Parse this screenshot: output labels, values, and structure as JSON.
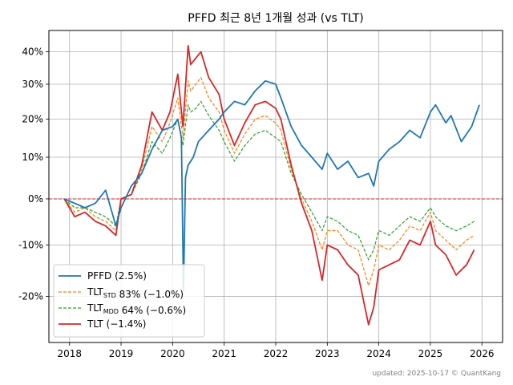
{
  "footer": {
    "text": "updated: 2025-10-17 © QuantKang"
  },
  "chart_data": {
    "type": "line",
    "title": "PFFD 최근 8년 1개월 성과 (vs TLT)",
    "xlabel": "",
    "ylabel": "",
    "grid": true,
    "legend_position": "bottom-left",
    "xlim": [
      2017.6,
      2026.4
    ],
    "ylim": [
      -0.28,
      0.47
    ],
    "y_scale": "log-growth",
    "x_ticks": [
      {
        "value": 2018,
        "label": "2018"
      },
      {
        "value": 2019,
        "label": "2019"
      },
      {
        "value": 2020,
        "label": "2020"
      },
      {
        "value": 2021,
        "label": "2021"
      },
      {
        "value": 2022,
        "label": "2022"
      },
      {
        "value": 2023,
        "label": "2023"
      },
      {
        "value": 2024,
        "label": "2024"
      },
      {
        "value": 2025,
        "label": "2025"
      },
      {
        "value": 2026,
        "label": "2026"
      }
    ],
    "y_ticks": [
      {
        "value": -0.2,
        "label": "-20%"
      },
      {
        "value": -0.1,
        "label": "-10%"
      },
      {
        "value": 0.0,
        "label": "0%"
      },
      {
        "value": 0.1,
        "label": "10%"
      },
      {
        "value": 0.2,
        "label": "20%"
      },
      {
        "value": 0.3,
        "label": "30%"
      },
      {
        "value": 0.4,
        "label": "40%"
      }
    ],
    "zero_line": {
      "value": 0.0,
      "color": "#d62728",
      "style": "dashed"
    },
    "series": [
      {
        "name": "PFFD (2.5%)",
        "color": "#1f77b4",
        "style": "solid",
        "x": [
          2017.9,
          2018.1,
          2018.3,
          2018.5,
          2018.7,
          2018.9,
          2019.0,
          2019.2,
          2019.4,
          2019.6,
          2019.8,
          2020.0,
          2020.1,
          2020.17,
          2020.21,
          2020.25,
          2020.3,
          2020.4,
          2020.5,
          2020.7,
          2020.9,
          2021.0,
          2021.2,
          2021.4,
          2021.6,
          2021.8,
          2022.0,
          2022.1,
          2022.3,
          2022.5,
          2022.7,
          2022.9,
          2023.0,
          2023.2,
          2023.4,
          2023.6,
          2023.8,
          2023.9,
          2024.0,
          2024.2,
          2024.4,
          2024.6,
          2024.8,
          2025.0,
          2025.1,
          2025.3,
          2025.4,
          2025.6,
          2025.8,
          2025.95
        ],
        "y": [
          0.0,
          -0.01,
          -0.02,
          -0.01,
          0.02,
          -0.06,
          -0.02,
          0.03,
          0.06,
          0.12,
          0.17,
          0.18,
          0.2,
          0.15,
          -0.19,
          0.05,
          0.08,
          0.1,
          0.14,
          0.17,
          0.2,
          0.22,
          0.25,
          0.24,
          0.28,
          0.31,
          0.3,
          0.26,
          0.18,
          0.13,
          0.1,
          0.07,
          0.11,
          0.07,
          0.09,
          0.05,
          0.06,
          0.03,
          0.09,
          0.12,
          0.14,
          0.17,
          0.15,
          0.22,
          0.24,
          0.19,
          0.21,
          0.14,
          0.18,
          0.24
        ]
      },
      {
        "name": "TLT<sub>STD</sub> 83% (−1.0%)",
        "color": "#ff7f0e",
        "style": "dashed",
        "x": [
          2017.9,
          2018.1,
          2018.3,
          2018.5,
          2018.7,
          2018.9,
          2019.0,
          2019.2,
          2019.4,
          2019.6,
          2019.8,
          2019.95,
          2020.1,
          2020.2,
          2020.3,
          2020.35,
          2020.45,
          2020.55,
          2020.7,
          2020.9,
          2021.0,
          2021.2,
          2021.4,
          2021.6,
          2021.8,
          2022.0,
          2022.1,
          2022.3,
          2022.5,
          2022.7,
          2022.9,
          2023.0,
          2023.2,
          2023.4,
          2023.6,
          2023.8,
          2023.9,
          2024.0,
          2024.2,
          2024.4,
          2024.6,
          2024.8,
          2025.0,
          2025.1,
          2025.3,
          2025.5,
          2025.7,
          2025.85
        ],
        "y": [
          0.0,
          -0.03,
          -0.02,
          -0.04,
          -0.05,
          -0.07,
          0.0,
          0.01,
          0.07,
          0.18,
          0.14,
          0.19,
          0.26,
          0.15,
          0.31,
          0.28,
          0.3,
          0.32,
          0.26,
          0.22,
          0.17,
          0.11,
          0.16,
          0.2,
          0.21,
          0.19,
          0.17,
          0.07,
          0.0,
          -0.05,
          -0.11,
          -0.07,
          -0.07,
          -0.1,
          -0.11,
          -0.18,
          -0.15,
          -0.1,
          -0.11,
          -0.09,
          -0.06,
          -0.07,
          -0.03,
          -0.07,
          -0.09,
          -0.11,
          -0.09,
          -0.08
        ]
      },
      {
        "name": "TLT<sub>MDD</sub> 64% (−0.6%)",
        "color": "#2ca02c",
        "style": "dashed",
        "x": [
          2017.9,
          2018.1,
          2018.3,
          2018.5,
          2018.7,
          2018.9,
          2019.0,
          2019.2,
          2019.4,
          2019.6,
          2019.8,
          2019.95,
          2020.1,
          2020.2,
          2020.3,
          2020.35,
          2020.45,
          2020.55,
          2020.7,
          2020.9,
          2021.0,
          2021.2,
          2021.4,
          2021.6,
          2021.8,
          2022.0,
          2022.1,
          2022.3,
          2022.5,
          2022.7,
          2022.9,
          2023.0,
          2023.2,
          2023.4,
          2023.6,
          2023.8,
          2023.9,
          2024.0,
          2024.2,
          2024.4,
          2024.6,
          2024.8,
          2025.0,
          2025.1,
          2025.3,
          2025.5,
          2025.7,
          2025.85
        ],
        "y": [
          0.0,
          -0.02,
          -0.02,
          -0.03,
          -0.04,
          -0.06,
          0.0,
          0.01,
          0.06,
          0.14,
          0.11,
          0.15,
          0.2,
          0.13,
          0.24,
          0.22,
          0.23,
          0.25,
          0.21,
          0.17,
          0.14,
          0.09,
          0.13,
          0.16,
          0.17,
          0.15,
          0.14,
          0.06,
          0.01,
          -0.03,
          -0.07,
          -0.04,
          -0.05,
          -0.07,
          -0.08,
          -0.13,
          -0.11,
          -0.07,
          -0.08,
          -0.06,
          -0.04,
          -0.05,
          -0.02,
          -0.04,
          -0.06,
          -0.07,
          -0.06,
          -0.05
        ]
      },
      {
        "name": "TLT (−1.4%)",
        "color": "#d62728",
        "style": "solid",
        "x": [
          2017.9,
          2018.1,
          2018.3,
          2018.5,
          2018.7,
          2018.9,
          2019.0,
          2019.2,
          2019.4,
          2019.6,
          2019.8,
          2019.95,
          2020.1,
          2020.2,
          2020.3,
          2020.35,
          2020.45,
          2020.55,
          2020.7,
          2020.9,
          2021.0,
          2021.2,
          2021.4,
          2021.6,
          2021.8,
          2022.0,
          2022.1,
          2022.3,
          2022.5,
          2022.7,
          2022.9,
          2023.0,
          2023.2,
          2023.4,
          2023.6,
          2023.8,
          2023.9,
          2024.0,
          2024.2,
          2024.4,
          2024.6,
          2024.8,
          2025.0,
          2025.1,
          2025.3,
          2025.5,
          2025.7,
          2025.85
        ],
        "y": [
          0.0,
          -0.04,
          -0.03,
          -0.05,
          -0.06,
          -0.08,
          0.0,
          0.01,
          0.08,
          0.22,
          0.17,
          0.22,
          0.33,
          0.18,
          0.42,
          0.36,
          0.38,
          0.4,
          0.32,
          0.27,
          0.2,
          0.13,
          0.19,
          0.24,
          0.25,
          0.23,
          0.2,
          0.08,
          -0.01,
          -0.07,
          -0.17,
          -0.1,
          -0.11,
          -0.14,
          -0.16,
          -0.25,
          -0.22,
          -0.15,
          -0.14,
          -0.13,
          -0.09,
          -0.1,
          -0.05,
          -0.1,
          -0.12,
          -0.16,
          -0.14,
          -0.11
        ]
      }
    ]
  }
}
